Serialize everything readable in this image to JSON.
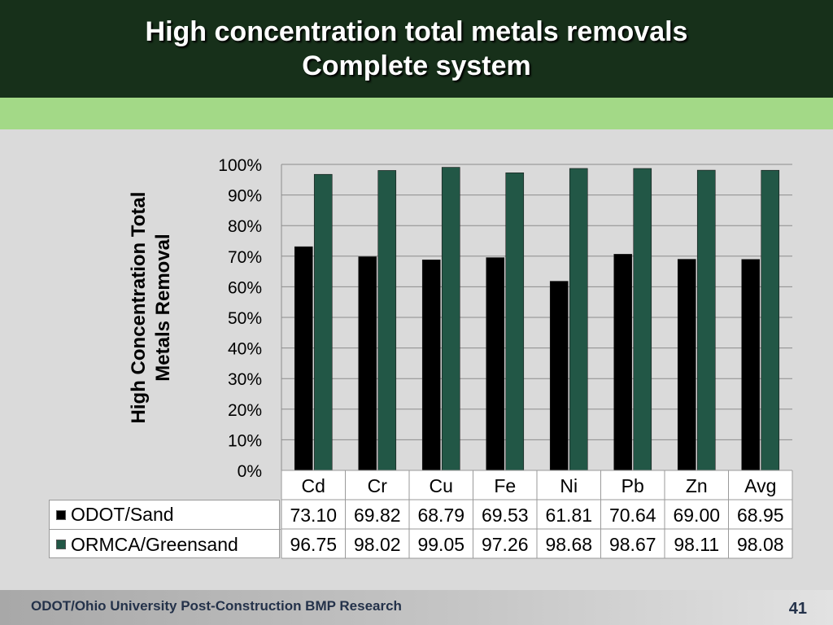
{
  "slide": {
    "title_line1": "High concentration total metals removals",
    "title_line2": "Complete system",
    "footer": "ODOT/Ohio University Post-Construction BMP Research",
    "page_number": "41"
  },
  "colors": {
    "title_band": "#17301a",
    "green_strip": "#a3d987",
    "series_odot": "#000000",
    "series_ormca": "#225746"
  },
  "chart_data": {
    "type": "bar",
    "title": "",
    "ylabel": "High Concentration Total Metals Removal",
    "xlabel": "",
    "categories": [
      "Cd",
      "Cr",
      "Cu",
      "Fe",
      "Ni",
      "Pb",
      "Zn",
      "Avg"
    ],
    "series": [
      {
        "name": "ODOT/Sand",
        "values": [
          73.1,
          69.82,
          68.79,
          69.53,
          61.81,
          70.64,
          69.0,
          68.95
        ]
      },
      {
        "name": "ORMCA/Greensand",
        "values": [
          96.75,
          98.02,
          99.05,
          97.26,
          98.68,
          98.67,
          98.11,
          98.08
        ]
      }
    ],
    "ylim": [
      0,
      100
    ],
    "yticks": [
      "0%",
      "10%",
      "20%",
      "30%",
      "40%",
      "50%",
      "60%",
      "70%",
      "80%",
      "90%",
      "100%"
    ],
    "grid": true,
    "legend": "data-table"
  }
}
